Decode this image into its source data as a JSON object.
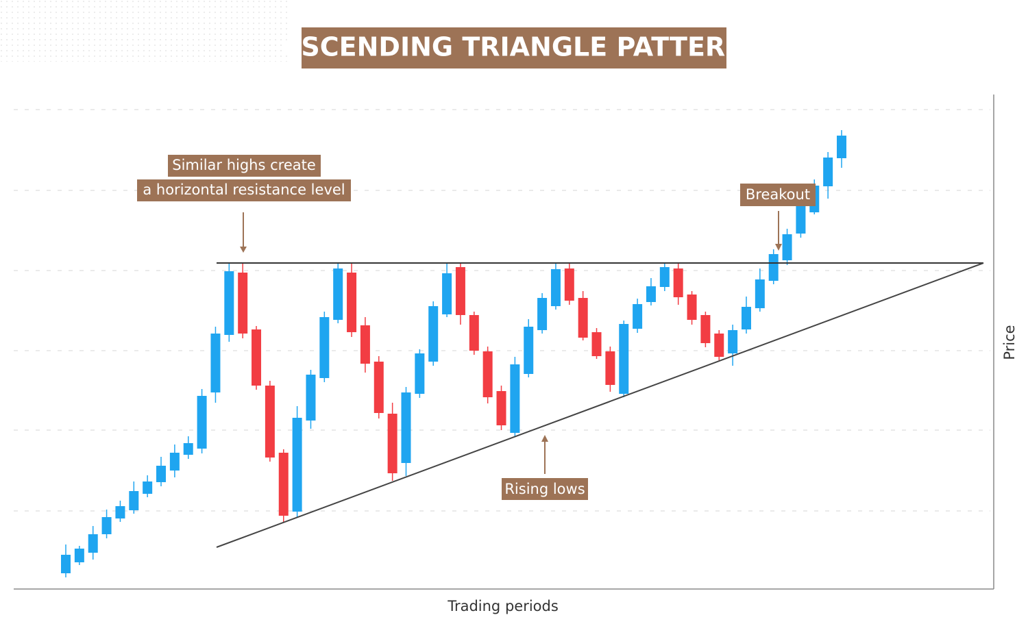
{
  "chart_data": {
    "type": "candlestick",
    "title": "ASCENDING TRIANGLE PATTERN",
    "x_label": "Trading periods",
    "y_label": "Price",
    "ylim": [
      0,
      72
    ],
    "yticks": [
      11.4,
      23.2,
      34.8,
      46.5,
      58.2,
      70.0
    ],
    "grid": true,
    "up_color": "#1fa5f0",
    "down_color": "#f23d43",
    "open": [
      2.3,
      3.9,
      5.3,
      8.0,
      10.3,
      11.5,
      13.9,
      15.6,
      17.3,
      19.6,
      20.5,
      28.7,
      37.1,
      46.2,
      37.9,
      29.7,
      19.9,
      11.3,
      24.6,
      30.8,
      39.3,
      46.2,
      38.5,
      33.2,
      25.6,
      18.4,
      28.5,
      33.2,
      40.1,
      47.0,
      40.0,
      34.7,
      28.9,
      22.8,
      31.4,
      37.8,
      41.3,
      46.8,
      42.5,
      37.5,
      34.7,
      28.5,
      38.0,
      41.9,
      44.1,
      46.8,
      43.0,
      40.0,
      37.3,
      34.4,
      37.9,
      41.0,
      45.0,
      48.0,
      51.9,
      55.0,
      58.8,
      62.9
    ],
    "high": [
      6.5,
      6.3,
      9.2,
      11.6,
      12.9,
      15.7,
      16.6,
      19.3,
      21.1,
      22.3,
      29.2,
      38.3,
      47.6,
      47.5,
      38.4,
      30.4,
      20.4,
      26.7,
      32.0,
      40.5,
      47.6,
      47.6,
      39.7,
      34.0,
      27.2,
      29.5,
      35.0,
      42.0,
      47.5,
      47.6,
      40.5,
      35.4,
      29.7,
      33.9,
      39.4,
      43.2,
      47.6,
      47.6,
      43.5,
      38.1,
      35.4,
      39.2,
      42.4,
      45.4,
      47.6,
      47.6,
      43.5,
      40.5,
      37.8,
      38.6,
      42.7,
      46.8,
      49.6,
      52.6,
      57.1,
      59.8,
      63.8,
      67.0
    ],
    "low": [
      1.7,
      3.5,
      4.3,
      7.4,
      9.8,
      11.0,
      13.4,
      15.0,
      16.3,
      19.0,
      19.8,
      27.2,
      36.1,
      36.6,
      29.1,
      18.6,
      9.8,
      10.5,
      23.4,
      30.2,
      38.8,
      36.8,
      31.6,
      24.9,
      15.8,
      16.5,
      27.9,
      32.6,
      39.7,
      38.6,
      34.2,
      27.1,
      23.2,
      22.2,
      30.9,
      37.3,
      40.8,
      41.5,
      36.3,
      33.6,
      28.8,
      28.0,
      37.4,
      41.4,
      43.5,
      41.5,
      38.6,
      35.3,
      33.4,
      32.6,
      37.3,
      40.5,
      44.5,
      47.3,
      51.3,
      54.7,
      57.0,
      61.5
    ],
    "close": [
      5.0,
      5.9,
      8.0,
      10.5,
      12.1,
      14.3,
      15.7,
      18.0,
      19.9,
      21.3,
      28.2,
      37.3,
      46.4,
      37.3,
      29.7,
      19.2,
      10.7,
      25.0,
      31.3,
      39.7,
      46.8,
      37.5,
      32.9,
      25.7,
      16.9,
      28.7,
      34.4,
      41.3,
      46.1,
      40.0,
      34.8,
      28.0,
      23.9,
      32.8,
      38.3,
      42.5,
      46.7,
      42.1,
      36.7,
      34.0,
      29.8,
      38.7,
      41.6,
      44.2,
      47.0,
      42.6,
      39.3,
      35.9,
      33.9,
      37.8,
      41.2,
      45.2,
      48.9,
      51.8,
      56.3,
      58.9,
      63.0,
      66.2
    ],
    "resistance": 47.6,
    "support": [
      6.1,
      47.6
    ],
    "annotations": [
      "Similar highs create",
      "a horizontal resistance level",
      "Breakout",
      "Rising lows"
    ]
  }
}
